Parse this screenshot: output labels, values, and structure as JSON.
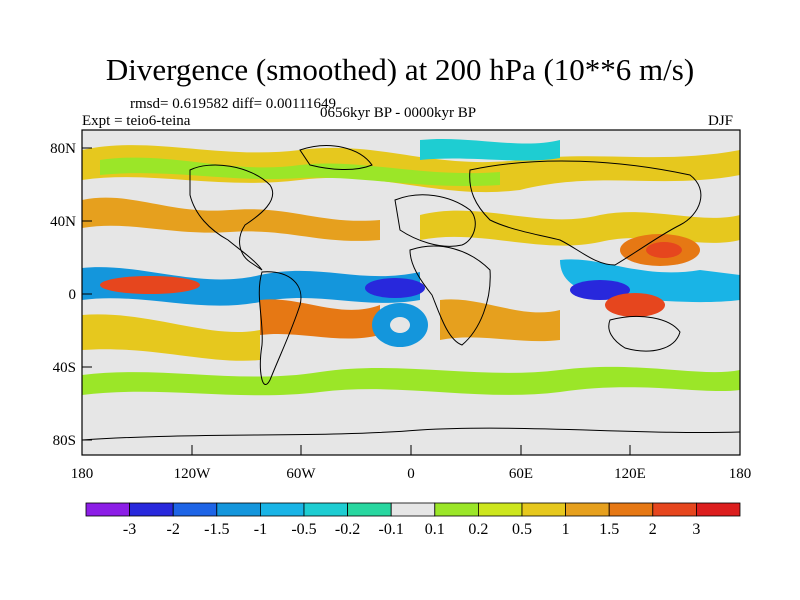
{
  "title": "Divergence (smoothed) at 200 hPa (10**6 m/s)",
  "stats": "rmsd= 0.619582 diff= 0.00111649",
  "experiment": "Expt = teio6-teina",
  "period": "0656kyr BP - 0000kyr BP",
  "season": "DJF",
  "lat_ticks": [
    "80N",
    "40N",
    "0",
    "40S",
    "80S"
  ],
  "lon_ticks": [
    "180",
    "120W",
    "60W",
    "0",
    "60E",
    "120E",
    "180"
  ],
  "colorbar": {
    "labels": [
      "-3",
      "-2",
      "-1.5",
      "-1",
      "-0.5",
      "-0.2",
      "-0.1",
      "0.1",
      "0.2",
      "0.5",
      "1",
      "1.5",
      "2",
      "3"
    ],
    "colors": [
      "#8c1ee6",
      "#2828dc",
      "#1e64e6",
      "#1496dc",
      "#19b4e6",
      "#1ecdd2",
      "#28d7a0",
      "#e6e6e6",
      "#9be628",
      "#cde61e",
      "#e6c81e",
      "#e6a01e",
      "#e67814",
      "#e6461e",
      "#dc1e1e"
    ]
  }
}
